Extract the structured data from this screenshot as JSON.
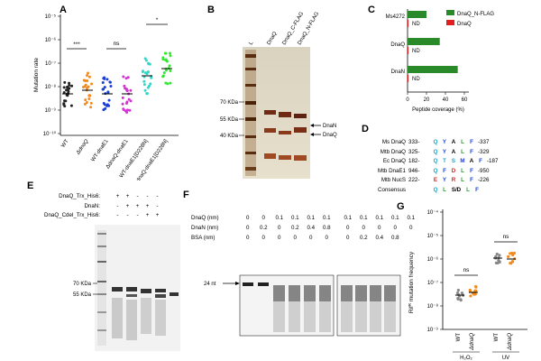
{
  "panels": {
    "A": "A",
    "B": "B",
    "C": "C",
    "D": "D",
    "E": "E",
    "F": "F",
    "G": "G"
  },
  "panelA": {
    "ylabel": "Mutation rate",
    "yticks": [
      "10⁻⁵",
      "10⁻⁶",
      "10⁻⁷",
      "10⁻⁸",
      "10⁻⁹",
      "10⁻¹⁰"
    ],
    "groups": [
      "WT",
      "ΔdnaQ",
      "WT-dnaE1",
      "ΔdnaQ-dnaE1",
      "WT-dnaE1[D228N]",
      "ΔdnaQ-dnaE1[D228N]"
    ],
    "sig": [
      "***",
      "ns",
      "*"
    ],
    "colors": [
      "#222222",
      "#f28a1e",
      "#1a3fd6",
      "#d633d6",
      "#33d6c8",
      "#33e833"
    ]
  },
  "panelB": {
    "lanes": [
      "L",
      "DnaQ",
      "DnaQ_C-FLAG",
      "DnaQ_N-FLAG"
    ],
    "markers": [
      "70 KDa",
      "55 KDa",
      "40 KDa"
    ],
    "arrows": [
      "DnaN",
      "DnaQ"
    ]
  },
  "panelC": {
    "categories": [
      "Ms4272",
      "DnaQ",
      "DnaN"
    ],
    "legend": [
      "DnaQ_N-FLAG",
      "DnaQ"
    ],
    "nd": "ND",
    "xticks": [
      "0",
      "20",
      "40",
      "60"
    ],
    "xlabel": "Peptide coverage (%)"
  },
  "chart_data": {
    "type": "bar",
    "orientation": "horizontal",
    "categories": [
      "Ms4272",
      "DnaQ",
      "DnaN"
    ],
    "series": [
      {
        "name": "DnaQ_N-FLAG",
        "values": [
          20,
          34,
          53
        ],
        "color": "#2a8a2a"
      },
      {
        "name": "DnaQ",
        "values": [
          0,
          0,
          0
        ],
        "color": "#e02020"
      }
    ],
    "xlabel": "Peptide coverage (%)",
    "xlim": [
      0,
      60
    ],
    "legend": "top-right"
  },
  "panelD": {
    "rows": [
      {
        "name": "Ms DnaQ",
        "start": "333-",
        "res": [
          "Q",
          "Y",
          "A",
          "L",
          "F"
        ],
        "end": "-337"
      },
      {
        "name": "Mtb DnaQ",
        "start": "325-",
        "res": [
          "Q",
          "Y",
          "A",
          "L",
          "F"
        ],
        "end": "-329"
      },
      {
        "name": "Ec DnaQ",
        "start": "182-",
        "res": [
          "Q",
          "T",
          "S",
          "M",
          "A",
          "F"
        ],
        "end": "-187"
      },
      {
        "name": "Mtb DnaE1",
        "start": "946-",
        "res": [
          "Q",
          "F",
          "D",
          "L",
          "F"
        ],
        "end": "-950"
      },
      {
        "name": "Mtb NucS",
        "start": "222-",
        "res": [
          "E",
          "Y",
          "R",
          "L",
          "F"
        ],
        "end": "-226"
      },
      {
        "name": "Consensus",
        "start": "",
        "res": [
          "Q",
          "L",
          "S/D",
          "L",
          "F"
        ],
        "end": ""
      }
    ]
  },
  "panelE": {
    "rows": [
      {
        "name": "DnaQ_Trx_His6:",
        "vals": [
          "+",
          "+",
          "-",
          "-",
          "-"
        ]
      },
      {
        "name": "DnaN:",
        "vals": [
          "-",
          "+",
          "+",
          "+",
          "-"
        ]
      },
      {
        "name": "DnaQ_Cdel_Trx_His6:",
        "vals": [
          "-",
          "-",
          "-",
          "+",
          "+"
        ]
      }
    ],
    "markers": [
      "70 KDa",
      "55 KDa"
    ]
  },
  "panelF": {
    "rows": [
      {
        "name": "DnaQ (nm)",
        "vals": [
          "0",
          "0",
          "0.1",
          "0.1",
          "0.1",
          "0.1",
          "0.1",
          "0.1",
          "0.1",
          "0.1",
          "0.1"
        ]
      },
      {
        "name": "DnaN (nm)",
        "vals": [
          "0",
          "0.2",
          "0",
          "0.2",
          "0.4",
          "0.8",
          "0",
          "0",
          "0",
          "0",
          "0"
        ]
      },
      {
        "name": "BSA (nm)",
        "vals": [
          "0",
          "0",
          "0",
          "0",
          "0",
          "0",
          "0",
          "0.2",
          "0.4",
          "0.8",
          ""
        ]
      }
    ],
    "marker": "24 nt"
  },
  "panelG": {
    "ylabel": "Rif",
    "ylabel_sup": "R",
    "ylabel_rest": " mutation frequency",
    "yticks": [
      "10⁻⁴",
      "10⁻⁵",
      "10⁻⁶",
      "10⁻⁷",
      "10⁻⁸",
      "10⁻⁹"
    ],
    "groups": [
      "WT",
      "ΔdnaQ",
      "WT",
      "ΔdnaQ"
    ],
    "conditions": [
      "H₂O₂",
      "UV"
    ],
    "sig": [
      "ns",
      "ns"
    ]
  }
}
